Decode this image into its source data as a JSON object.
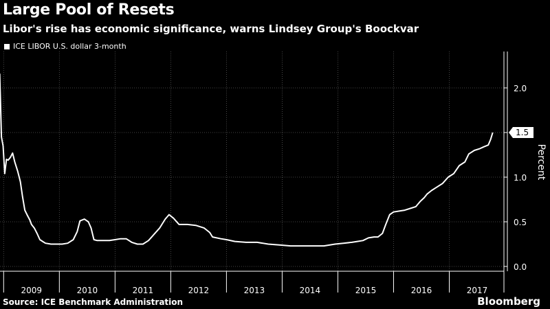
{
  "chart_data": {
    "type": "line",
    "title": "Large Pool of Resets",
    "subtitle": "Libor's rise has economic significance, warns Lindsey Group's Boockvar",
    "ylabel": "Percent",
    "ylim": [
      0,
      2.4
    ],
    "yticks": [
      "0.0",
      "0.5",
      "1.0",
      "1.5",
      "2.0"
    ],
    "years": [
      "2009",
      "2010",
      "2011",
      "2012",
      "2013",
      "2014",
      "2015",
      "2016",
      "2017"
    ],
    "last_value_label": "1.5",
    "grid": true,
    "legend_position": "top-left",
    "series": [
      {
        "name": "ICE LIBOR U.S. dollar 3-month",
        "color": "#ffffff",
        "points": [
          [
            2008.93,
            2.16
          ],
          [
            2008.96,
            1.45
          ],
          [
            2008.99,
            1.35
          ],
          [
            2009.02,
            1.04
          ],
          [
            2009.05,
            1.2
          ],
          [
            2009.08,
            1.19
          ],
          [
            2009.12,
            1.22
          ],
          [
            2009.16,
            1.27
          ],
          [
            2009.2,
            1.17
          ],
          [
            2009.25,
            1.07
          ],
          [
            2009.3,
            0.95
          ],
          [
            2009.34,
            0.78
          ],
          [
            2009.38,
            0.63
          ],
          [
            2009.42,
            0.58
          ],
          [
            2009.47,
            0.52
          ],
          [
            2009.5,
            0.47
          ],
          [
            2009.55,
            0.43
          ],
          [
            2009.6,
            0.37
          ],
          [
            2009.65,
            0.3
          ],
          [
            2009.7,
            0.28
          ],
          [
            2009.75,
            0.26
          ],
          [
            2009.85,
            0.25
          ],
          [
            2009.95,
            0.25
          ],
          [
            2010.05,
            0.25
          ],
          [
            2010.15,
            0.26
          ],
          [
            2010.25,
            0.3
          ],
          [
            2010.32,
            0.39
          ],
          [
            2010.37,
            0.51
          ],
          [
            2010.45,
            0.53
          ],
          [
            2010.52,
            0.5
          ],
          [
            2010.57,
            0.43
          ],
          [
            2010.62,
            0.3
          ],
          [
            2010.68,
            0.29
          ],
          [
            2010.8,
            0.29
          ],
          [
            2010.9,
            0.29
          ],
          [
            2011.0,
            0.3
          ],
          [
            2011.1,
            0.31
          ],
          [
            2011.2,
            0.31
          ],
          [
            2011.3,
            0.27
          ],
          [
            2011.4,
            0.25
          ],
          [
            2011.5,
            0.25
          ],
          [
            2011.6,
            0.29
          ],
          [
            2011.7,
            0.36
          ],
          [
            2011.8,
            0.43
          ],
          [
            2011.9,
            0.53
          ],
          [
            2011.97,
            0.58
          ],
          [
            2012.05,
            0.54
          ],
          [
            2012.15,
            0.47
          ],
          [
            2012.3,
            0.47
          ],
          [
            2012.45,
            0.46
          ],
          [
            2012.6,
            0.43
          ],
          [
            2012.7,
            0.38
          ],
          [
            2012.75,
            0.33
          ],
          [
            2012.9,
            0.31
          ],
          [
            2013.0,
            0.3
          ],
          [
            2013.15,
            0.28
          ],
          [
            2013.35,
            0.27
          ],
          [
            2013.55,
            0.27
          ],
          [
            2013.75,
            0.25
          ],
          [
            2013.95,
            0.24
          ],
          [
            2014.15,
            0.23
          ],
          [
            2014.35,
            0.23
          ],
          [
            2014.55,
            0.23
          ],
          [
            2014.75,
            0.23
          ],
          [
            2014.95,
            0.25
          ],
          [
            2015.1,
            0.26
          ],
          [
            2015.25,
            0.27
          ],
          [
            2015.35,
            0.28
          ],
          [
            2015.45,
            0.29
          ],
          [
            2015.55,
            0.32
          ],
          [
            2015.65,
            0.33
          ],
          [
            2015.72,
            0.33
          ],
          [
            2015.8,
            0.37
          ],
          [
            2015.86,
            0.47
          ],
          [
            2015.93,
            0.58
          ],
          [
            2016.0,
            0.61
          ],
          [
            2016.1,
            0.62
          ],
          [
            2016.2,
            0.63
          ],
          [
            2016.3,
            0.65
          ],
          [
            2016.4,
            0.67
          ],
          [
            2016.48,
            0.73
          ],
          [
            2016.55,
            0.77
          ],
          [
            2016.6,
            0.81
          ],
          [
            2016.68,
            0.85
          ],
          [
            2016.78,
            0.89
          ],
          [
            2016.88,
            0.93
          ],
          [
            2016.98,
            1.0
          ],
          [
            2017.08,
            1.04
          ],
          [
            2017.18,
            1.13
          ],
          [
            2017.28,
            1.17
          ],
          [
            2017.35,
            1.26
          ],
          [
            2017.45,
            1.3
          ],
          [
            2017.55,
            1.32
          ],
          [
            2017.62,
            1.34
          ],
          [
            2017.7,
            1.36
          ],
          [
            2017.74,
            1.42
          ],
          [
            2017.78,
            1.5
          ]
        ]
      }
    ]
  },
  "source": "Source: ICE Benchmark Administration",
  "brand": "Bloomberg",
  "colors": {
    "background": "#000000",
    "line": "#ffffff",
    "grid": "#5a5a5a"
  }
}
